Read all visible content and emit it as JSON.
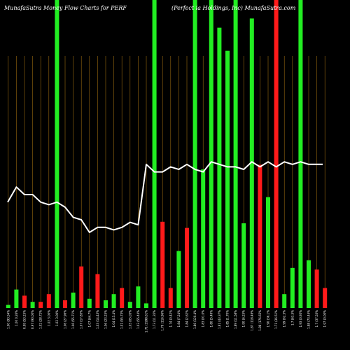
{
  "chart_data": {
    "type": "bar",
    "title_left": "MunafaSutra  Money Flow  Charts for PERF",
    "title_right": "(Perfect                          ia  Holdings, Inc) MunafaSutra.com",
    "bar_ymax": 100,
    "line_ymin": 0,
    "line_ymax": 100,
    "vgrid_color": "#9a6a10",
    "line_color": "#ffffff",
    "colors": {
      "green": "#22ee22",
      "red": "#ff1a1a"
    },
    "categories": [
      "1.00 (93.54%",
      "1.00 0.26%",
      "0.99 (53.25%",
      "0.97 (90.00%",
      "1.02 (28.72%",
      "1.02 3.00%",
      "1.02 3.00%",
      "1.06 (27.96%",
      "1.06 (55.71%",
      "1.07 (17.85%",
      "1.07 (64.7%",
      "1.03 (14.43%",
      "1.06 (23.25%",
      "1.04 (15.4%",
      "1.01 (55.73%",
      "1.03 (05.05%",
      "1.03 (55.44%",
      "1.71 (1998.61%",
      "1.73 (11.35%",
      "1.79 (116.96%",
      "1.74 (0.42%",
      "1.84 (7.24%",
      "1.84 (2.62%",
      "1.86 (120.4%",
      "1.83 (91.0%",
      "1.80 (5.49%",
      "1.81 (43.37%",
      "1.85 (1.70%",
      "1.89 (11.58%",
      "1.90 (6.25%",
      "1.87 (118.49%",
      "1.88 (176.65%",
      "1.90 (36.1%",
      "1.71 (36.51%",
      "1.99 (62.5%",
      "1.7 (63.5%",
      "1.93 (0.95%",
      "1.88 (73.44%",
      "1.7 (37.53%",
      "1.97 (0.00%"
    ],
    "bottom_labels": [
      "",
      "",
      "",
      "",
      "",
      "",
      "",
      "",
      "",
      "",
      "",
      "",
      "",
      "",
      "",
      "",
      "",
      "",
      "",
      "",
      "",
      "",
      "",
      "",
      "",
      "",
      "",
      "",
      "",
      "",
      "",
      "",
      "",
      "",
      "",
      "",
      "",
      "",
      "",
      ""
    ],
    "series": [
      {
        "label": "money flow",
        "values": [
          1,
          6,
          4,
          2,
          2,
          4.5,
          100,
          2.5,
          5,
          13.5,
          3,
          11,
          2.5,
          4.5,
          6.5,
          2,
          7,
          1.5,
          100,
          28,
          6.5,
          18.5,
          26,
          100,
          45,
          100,
          91,
          83.5,
          100,
          27.5,
          94,
          46.5,
          36,
          100,
          4.5,
          13,
          100,
          15.5,
          12.5,
          6.5
        ],
        "colors": [
          "g",
          "g",
          "r",
          "g",
          "r",
          "r",
          "g",
          "r",
          "g",
          "r",
          "g",
          "r",
          "g",
          "g",
          "r",
          "g",
          "g",
          "g",
          "g",
          "r",
          "r",
          "g",
          "r",
          "g",
          "g",
          "g",
          "g",
          "g",
          "g",
          "g",
          "g",
          "r",
          "g",
          "r",
          "g",
          "g",
          "g",
          "g",
          "r",
          "r"
        ]
      },
      {
        "label": "price",
        "values": [
          42,
          48,
          45,
          45,
          42,
          41,
          42,
          40,
          36,
          35,
          30,
          32,
          32,
          31,
          32,
          34,
          33,
          57,
          54,
          54,
          56,
          55,
          57,
          55,
          54,
          58,
          57,
          56,
          56,
          55,
          58,
          56,
          58,
          56,
          58,
          57,
          58,
          57,
          57,
          57
        ]
      }
    ]
  }
}
